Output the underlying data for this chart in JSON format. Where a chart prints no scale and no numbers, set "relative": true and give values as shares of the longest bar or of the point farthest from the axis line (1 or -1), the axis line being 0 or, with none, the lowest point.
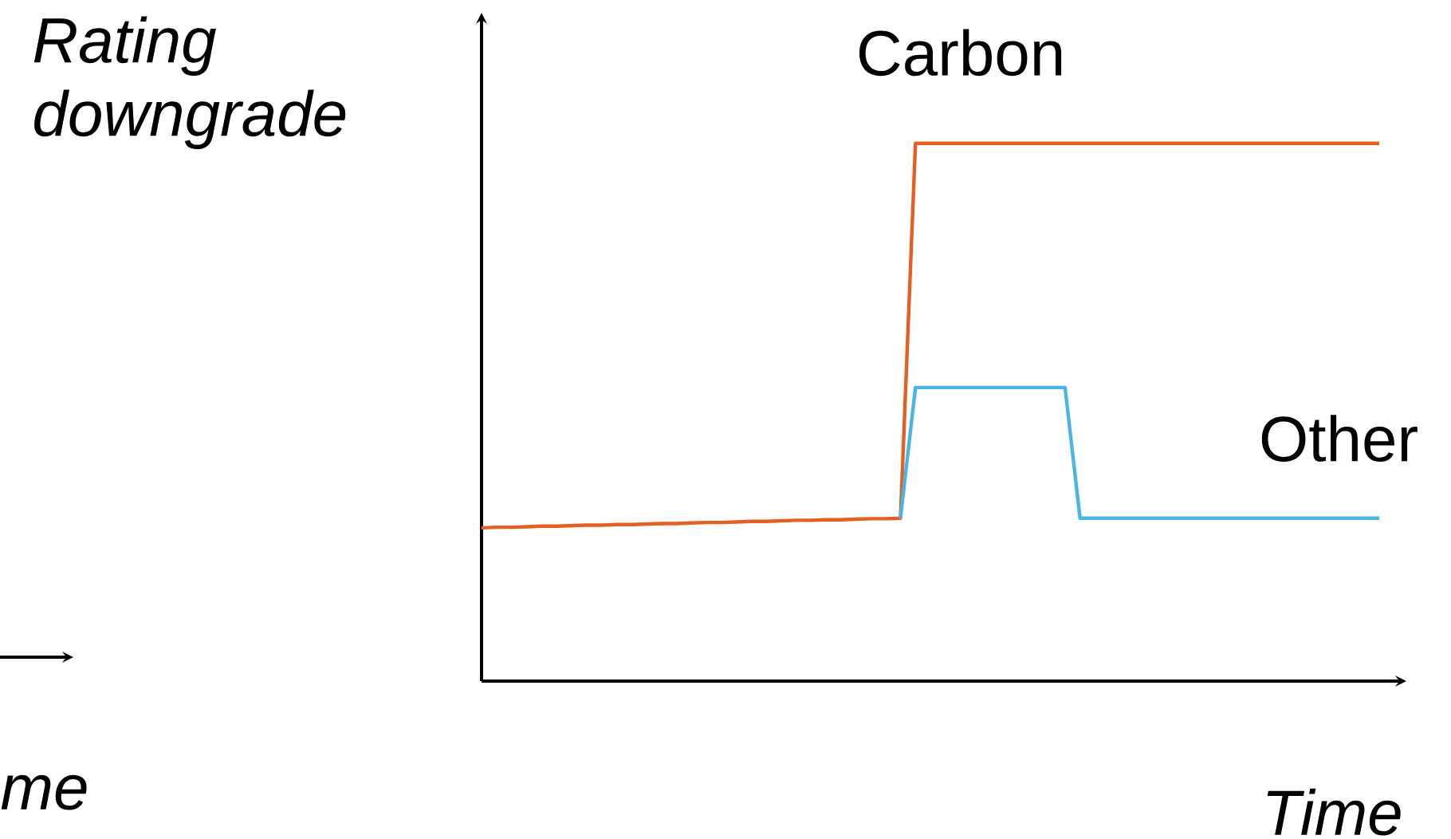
{
  "chart_data": {
    "type": "line",
    "relative": true,
    "xlabel": "Time",
    "ylabel": "Rating downgrade",
    "annotations": [
      "me"
    ],
    "categories": [
      null,
      null,
      null,
      null,
      null,
      null,
      null,
      null,
      null,
      null,
      null,
      null,
      null,
      null,
      null,
      null,
      null,
      null,
      null,
      null,
      null,
      null,
      null,
      null,
      null,
      null,
      null,
      null,
      null,
      null,
      null,
      null,
      null,
      null,
      null,
      null,
      null,
      null,
      null,
      null,
      null,
      null,
      null,
      null,
      null,
      null,
      null,
      null,
      null,
      null,
      null,
      null,
      null,
      null,
      null,
      null,
      null,
      null,
      null,
      null,
      null
    ],
    "series": [
      {
        "name": "Carbon",
        "color": "#e35f22",
        "values": [
          0.285,
          0.286,
          0.286,
          0.287,
          0.288,
          0.288,
          0.289,
          0.29,
          0.29,
          0.291,
          0.291,
          0.292,
          0.293,
          0.293,
          0.294,
          0.295,
          0.295,
          0.296,
          0.297,
          0.297,
          0.298,
          0.299,
          0.299,
          0.3,
          0.3,
          0.301,
          0.302,
          0.302,
          0.303,
          1,
          1,
          1,
          1,
          1,
          1,
          1,
          1,
          1,
          1,
          1,
          1,
          1,
          1,
          1,
          1,
          1,
          1,
          1,
          1,
          1,
          1,
          1,
          1,
          1,
          1,
          1,
          1,
          1,
          1,
          1,
          1
        ]
      },
      {
        "name": "Other",
        "color": "#4ab4e4",
        "values": [
          null,
          null,
          null,
          null,
          null,
          null,
          null,
          null,
          null,
          null,
          null,
          null,
          null,
          null,
          null,
          null,
          null,
          null,
          null,
          null,
          null,
          null,
          null,
          null,
          null,
          null,
          null,
          null,
          0.303,
          0.546,
          0.546,
          0.546,
          0.546,
          0.546,
          0.546,
          0.546,
          0.546,
          0.546,
          0.546,
          0.546,
          0.303,
          0.303,
          0.303,
          0.303,
          0.303,
          0.303,
          0.303,
          0.303,
          0.303,
          0.303,
          0.303,
          0.303,
          0.303,
          0.303,
          0.303,
          0.303,
          0.303,
          0.303,
          0.303,
          0.303,
          0.303
        ]
      }
    ]
  }
}
